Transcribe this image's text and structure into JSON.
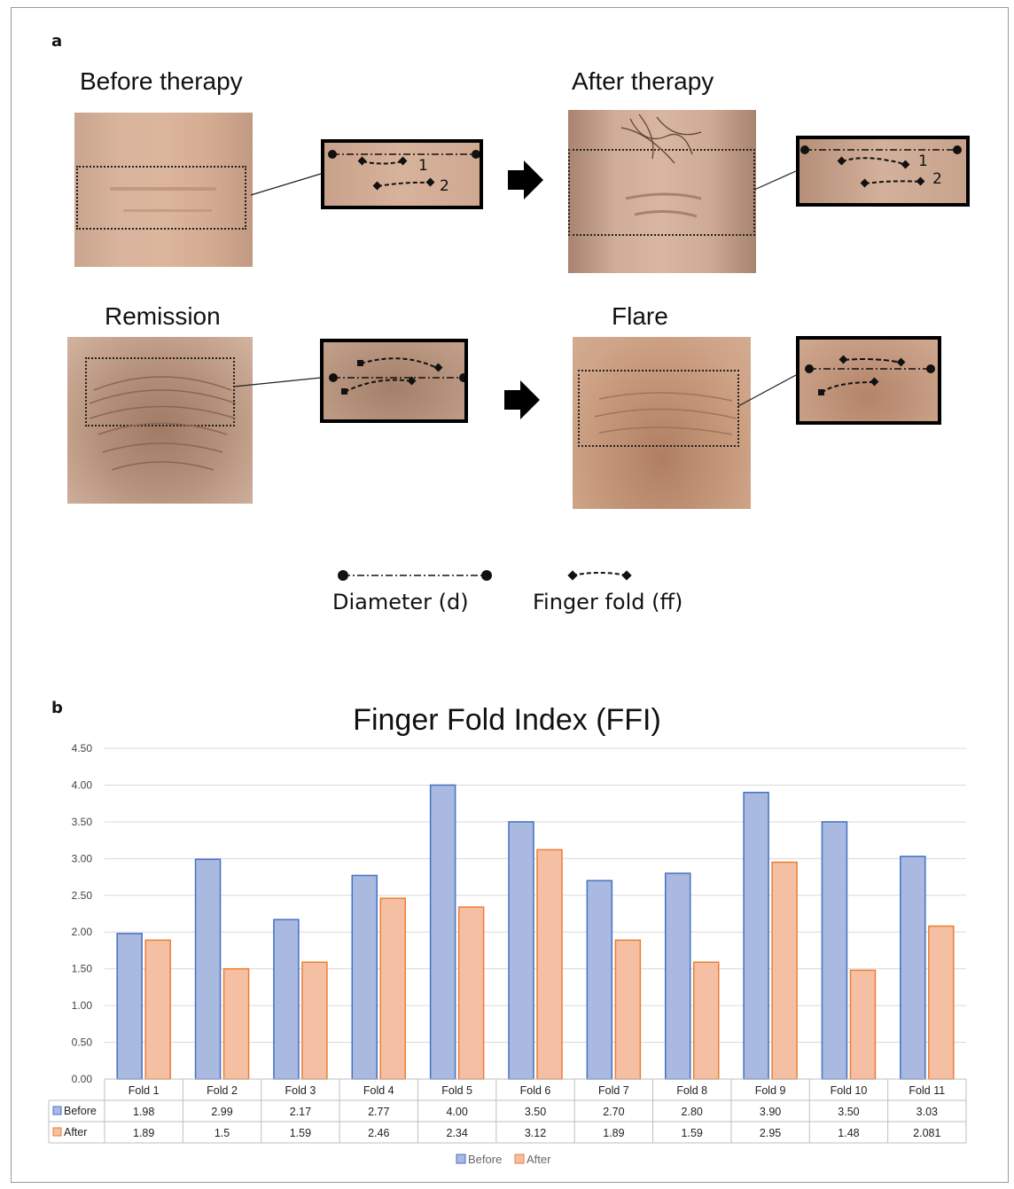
{
  "figure": {
    "panel_a_label": "a",
    "panel_b_label": "b",
    "captions": {
      "before": "Before therapy",
      "after": "After therapy",
      "remission": "Remission",
      "flare": "Flare"
    },
    "inset_fold_labels": [
      "1",
      "2"
    ],
    "legend": {
      "diameter": "Diameter (d)",
      "finger_fold": "Finger fold (ff)"
    }
  },
  "chart_data": {
    "type": "bar",
    "title": "Finger Fold Index (FFI)",
    "categories": [
      "Fold 1",
      "Fold 2",
      "Fold 3",
      "Fold 4",
      "Fold 5",
      "Fold 6",
      "Fold 7",
      "Fold 8",
      "Fold 9",
      "Fold 10",
      "Fold 11"
    ],
    "series": [
      {
        "name": "Before",
        "color": "#4472c4",
        "fill": "#a9b9e0",
        "values": [
          1.98,
          2.99,
          2.17,
          2.77,
          4.0,
          3.5,
          2.7,
          2.8,
          3.9,
          3.5,
          3.03
        ],
        "labels": [
          "1.98",
          "2.99",
          "2.17",
          "2.77",
          "4.00",
          "3.50",
          "2.70",
          "2.80",
          "3.90",
          "3.50",
          "3.03"
        ]
      },
      {
        "name": "After",
        "color": "#ed7d31",
        "fill": "#f5bfa3",
        "values": [
          1.89,
          1.5,
          1.59,
          2.46,
          2.34,
          3.12,
          1.89,
          1.59,
          2.95,
          1.48,
          2.081
        ],
        "labels": [
          "1.89",
          "1.5",
          "1.59",
          "2.46",
          "2.34",
          "3.12",
          "1.89",
          "1.59",
          "2.95",
          "1.48",
          "2.081"
        ]
      }
    ],
    "ylim": [
      0,
      4.5
    ],
    "yticks": [
      "0.00",
      "0.50",
      "1.00",
      "1.50",
      "2.00",
      "2.50",
      "3.00",
      "3.50",
      "4.00",
      "4.50"
    ],
    "grid": true,
    "legend_position": "bottom",
    "data_table": true
  }
}
